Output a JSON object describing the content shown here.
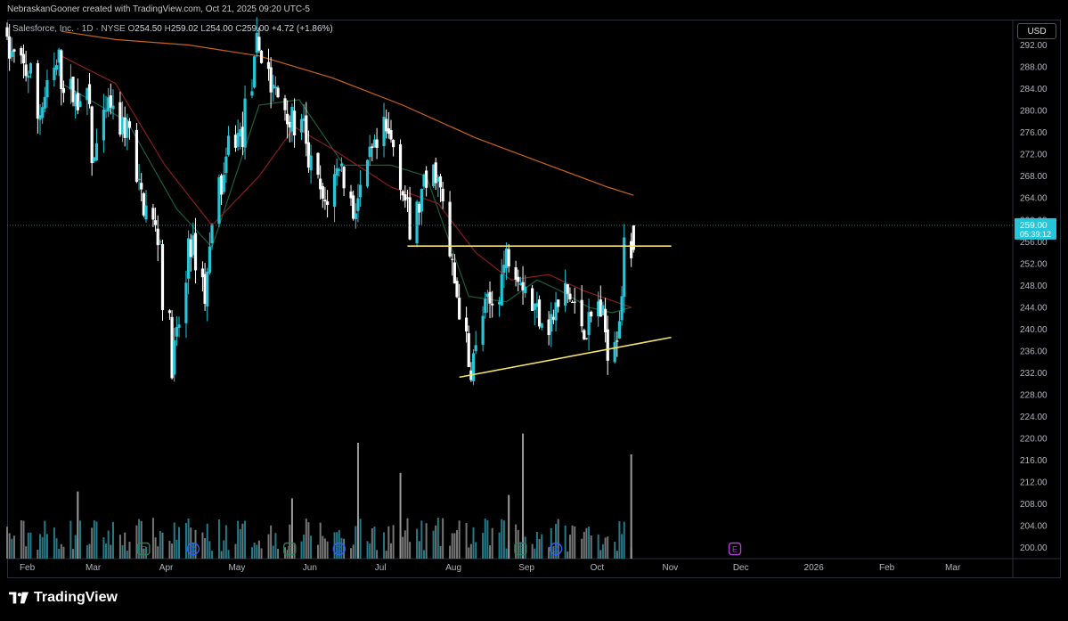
{
  "header": {
    "credit": "NebraskanGooner created with TradingView.com, Oct 21, 2025 09:20 UTC-5"
  },
  "legend": {
    "symbol": "Salesforce, Inc. · 1D · NYSE",
    "open_label": "O",
    "open": "254.50",
    "high_label": "H",
    "high": "259.02",
    "low_label": "L",
    "low": "254.00",
    "close_label": "C",
    "close": "259.00",
    "change": "+4.72 (+1.86%)"
  },
  "currency": "USD",
  "last_price": {
    "value": "259.00",
    "countdown": "05:39:12"
  },
  "brand": {
    "name": "TradingView"
  },
  "colors": {
    "up": "#26c6da",
    "down": "#ffffff",
    "ma_fast": "#1b5e3b",
    "ma_mid": "#8b1c1c",
    "ma_slow": "#c8631a",
    "trendline": "#f5e36b",
    "event_earnings": "#2e7d5b",
    "event_dividend": "#2962ff",
    "event_future": "#b040d0"
  },
  "events": [
    {
      "label": "E",
      "type": "earnings",
      "date": "2025-03-27"
    },
    {
      "label": "D",
      "type": "dividend",
      "date": "2025-04-17"
    },
    {
      "label": "E",
      "type": "earnings",
      "date": "2025-05-28"
    },
    {
      "label": "D",
      "type": "dividend",
      "date": "2025-06-18"
    },
    {
      "label": "E",
      "type": "earnings",
      "date": "2025-09-03"
    },
    {
      "label": "D",
      "type": "dividend",
      "date": "2025-09-18"
    },
    {
      "label": "E",
      "type": "future",
      "date": "2025-12-03"
    }
  ],
  "chart_data": {
    "type": "candlestick",
    "title": "Salesforce, Inc. · 1D · NYSE",
    "y_axis_ticks": [
      "292.00",
      "288.00",
      "284.00",
      "280.00",
      "276.00",
      "272.00",
      "268.00",
      "264.00",
      "260.00",
      "256.00",
      "252.00",
      "248.00",
      "244.00",
      "240.00",
      "236.00",
      "232.00",
      "228.00",
      "224.00",
      "220.00",
      "216.00",
      "212.00",
      "208.00",
      "204.00",
      "200.00"
    ],
    "x_axis_ticks": [
      "Feb",
      "Mar",
      "Apr",
      "May",
      "Jun",
      "Jul",
      "Aug",
      "Sep",
      "Oct",
      "Nov",
      "Dec",
      "2026",
      "Feb",
      "Mar"
    ],
    "ylim": [
      198,
      296
    ],
    "xlim": [
      "2025-01-28",
      "2026-03-31"
    ],
    "grid": false,
    "price_anchors": [
      [
        "2025-01-28",
        296,
        291
      ],
      [
        "2025-02-10",
        285,
        279
      ],
      [
        "2025-02-20",
        290,
        286
      ],
      [
        "2025-02-28",
        281,
        284
      ],
      [
        "2025-03-05",
        280,
        270
      ],
      [
        "2025-03-14",
        283,
        278
      ],
      [
        "2025-03-24",
        276,
        266
      ],
      [
        "2025-04-04",
        255,
        246
      ],
      [
        "2025-04-08",
        238,
        234
      ],
      [
        "2025-04-15",
        250,
        257
      ],
      [
        "2025-04-22",
        248,
        246
      ],
      [
        "2025-04-25",
        258,
        262
      ],
      [
        "2025-05-02",
        270,
        274
      ],
      [
        "2025-05-09",
        276,
        280
      ],
      [
        "2025-05-14",
        289,
        292
      ],
      [
        "2025-05-20",
        287,
        284
      ],
      [
        "2025-05-28",
        280,
        278
      ],
      [
        "2025-06-04",
        276,
        272
      ],
      [
        "2025-06-11",
        264,
        262
      ],
      [
        "2025-06-18",
        270,
        271
      ],
      [
        "2025-06-25",
        260,
        263
      ],
      [
        "2025-07-01",
        269,
        271
      ],
      [
        "2025-07-07",
        274,
        276
      ],
      [
        "2025-07-14",
        272,
        268
      ],
      [
        "2025-07-18",
        259,
        257
      ],
      [
        "2025-07-25",
        267,
        266
      ],
      [
        "2025-07-30",
        270,
        267
      ],
      [
        "2025-08-04",
        255,
        253
      ],
      [
        "2025-08-12",
        235,
        232
      ],
      [
        "2025-08-18",
        240,
        243
      ],
      [
        "2025-08-25",
        246,
        248
      ],
      [
        "2025-08-29",
        255,
        254
      ],
      [
        "2025-09-04",
        250,
        249
      ],
      [
        "2025-09-08",
        246,
        244
      ],
      [
        "2025-09-15",
        242,
        241
      ],
      [
        "2025-09-22",
        246,
        247
      ],
      [
        "2025-09-26",
        244,
        243
      ],
      [
        "2025-10-01",
        240,
        240
      ],
      [
        "2025-10-06",
        244,
        245
      ],
      [
        "2025-10-10",
        238,
        237
      ],
      [
        "2025-10-15",
        241,
        243
      ],
      [
        "2025-10-17",
        252,
        254
      ],
      [
        "2025-10-21",
        254.5,
        259
      ]
    ],
    "last_candle": {
      "date": "2025-10-21",
      "open": 254.5,
      "high": 259.02,
      "low": 254.0,
      "close": 259.0
    },
    "moving_averages": [
      {
        "name": "short",
        "points": [
          [
            "2025-02-20",
            285
          ],
          [
            "2025-03-20",
            278
          ],
          [
            "2025-04-10",
            262
          ],
          [
            "2025-04-25",
            255
          ],
          [
            "2025-05-15",
            281
          ],
          [
            "2025-06-01",
            282
          ],
          [
            "2025-06-20",
            270
          ],
          [
            "2025-07-10",
            270
          ],
          [
            "2025-07-25",
            268
          ],
          [
            "2025-08-12",
            246
          ],
          [
            "2025-08-28",
            245
          ],
          [
            "2025-09-10",
            249
          ],
          [
            "2025-09-20",
            247
          ],
          [
            "2025-10-02",
            244
          ],
          [
            "2025-10-12",
            243
          ],
          [
            "2025-10-20",
            244
          ]
        ]
      },
      {
        "name": "mid",
        "points": [
          [
            "2025-02-20",
            290
          ],
          [
            "2025-03-15",
            285
          ],
          [
            "2025-04-05",
            270
          ],
          [
            "2025-04-25",
            259
          ],
          [
            "2025-05-15",
            268
          ],
          [
            "2025-05-30",
            277
          ],
          [
            "2025-06-15",
            273
          ],
          [
            "2025-07-10",
            266
          ],
          [
            "2025-07-30",
            263
          ],
          [
            "2025-08-15",
            254
          ],
          [
            "2025-08-30",
            249
          ],
          [
            "2025-09-15",
            250
          ],
          [
            "2025-09-30",
            247
          ],
          [
            "2025-10-20",
            244
          ]
        ]
      },
      {
        "name": "long",
        "points": [
          [
            "2025-02-20",
            294.5
          ],
          [
            "2025-03-15",
            293
          ],
          [
            "2025-04-15",
            292
          ],
          [
            "2025-05-15",
            290
          ],
          [
            "2025-06-15",
            286
          ],
          [
            "2025-07-15",
            281
          ],
          [
            "2025-08-15",
            275
          ],
          [
            "2025-09-15",
            270
          ],
          [
            "2025-10-10",
            266
          ],
          [
            "2025-10-21",
            264.5
          ]
        ]
      }
    ],
    "drawings": [
      {
        "name": "resistance",
        "from": [
          "2025-07-17",
          255.2
        ],
        "to": [
          "2025-11-06",
          255.2
        ]
      },
      {
        "name": "rising-support",
        "from": [
          "2025-08-08",
          231.2
        ],
        "to": [
          "2025-11-06",
          238.5
        ]
      }
    ],
    "volume": {
      "note": "relative daily volume shown as histogram, last date 2025-10-21",
      "spikes": [
        [
          "2025-06-26",
          1.0
        ],
        [
          "2025-09-04",
          1.08
        ],
        [
          "2025-10-20",
          0.9
        ],
        [
          "2025-07-14",
          0.74
        ],
        [
          "2025-08-29",
          0.55
        ],
        [
          "2025-05-29",
          0.52
        ],
        [
          "2025-02-27",
          0.58
        ]
      ]
    }
  }
}
